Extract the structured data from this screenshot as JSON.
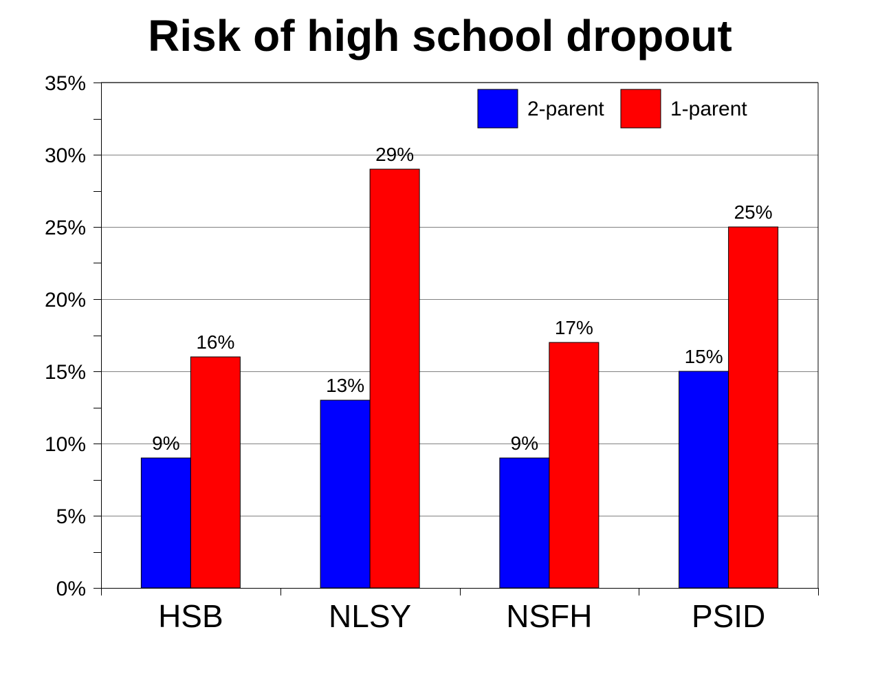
{
  "chart_data": {
    "type": "bar",
    "title": "Risk of high school dropout",
    "xlabel": "",
    "ylabel": "",
    "categories": [
      "HSB",
      "NLSY",
      "NSFH",
      "PSID"
    ],
    "series": [
      {
        "name": "2-parent",
        "color": "#0000ff",
        "values": [
          9,
          13,
          9,
          15
        ],
        "labels": [
          "9%",
          "13%",
          "9%",
          "15%"
        ]
      },
      {
        "name": "1-parent",
        "color": "#ff0000",
        "values": [
          16,
          29,
          17,
          25
        ],
        "labels": [
          "16%",
          "29%",
          "17%",
          "25%"
        ]
      }
    ],
    "ylim": [
      0,
      35
    ],
    "yticks": [
      0,
      5,
      10,
      15,
      20,
      25,
      30,
      35
    ],
    "ytick_labels": [
      "0%",
      "5%",
      "10%",
      "15%",
      "20%",
      "25%",
      "30%",
      "35%"
    ],
    "grid": true,
    "legend_position": "top-right"
  }
}
